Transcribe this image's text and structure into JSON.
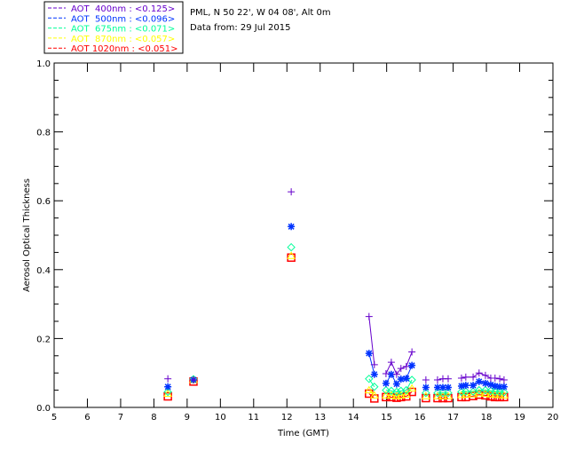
{
  "chart_data": {
    "type": "line",
    "title": "",
    "site": "PML, N 50 22', W 04 08', Alt 0m",
    "date": "Data from: 29 Jul 2015",
    "xlabel": "Time (GMT)",
    "ylabel": "Aerosol Optical Thickness",
    "xlim": [
      5,
      20
    ],
    "ylim": [
      0,
      1.0
    ],
    "xticks": [
      "5",
      "6",
      "7",
      "8",
      "9",
      "10",
      "11",
      "12",
      "13",
      "14",
      "15",
      "16",
      "17",
      "18",
      "19",
      "20"
    ],
    "yticks": [
      "0.0",
      "0.2",
      "0.4",
      "0.6",
      "0.8",
      "1.0"
    ],
    "legend_placement": "top-left outside",
    "x": [
      8.42,
      9.19,
      12.13,
      14.47,
      14.63,
      14.98,
      15.14,
      15.3,
      15.43,
      15.59,
      15.76,
      16.18,
      16.53,
      16.69,
      16.85,
      17.25,
      17.38,
      17.6,
      17.78,
      17.97,
      18.13,
      18.26,
      18.4,
      18.53
    ],
    "segments": [
      [
        0
      ],
      [
        1
      ],
      [
        2
      ],
      [
        3,
        4
      ],
      [
        5,
        6,
        7,
        8,
        9,
        10
      ],
      [
        11
      ],
      [
        12,
        13,
        14
      ],
      [
        15,
        16,
        17,
        18,
        19,
        20,
        21,
        22,
        23
      ]
    ],
    "series": [
      {
        "name": "AOT  400nm",
        "legend": "AOT  400nm : <0.125>",
        "marker": "plus",
        "color": "#6600cc",
        "values": [
          0.083,
          0.08,
          0.626,
          0.264,
          0.124,
          0.098,
          0.131,
          0.096,
          0.113,
          0.119,
          0.161,
          0.08,
          0.08,
          0.083,
          0.083,
          0.085,
          0.088,
          0.088,
          0.1,
          0.093,
          0.085,
          0.085,
          0.083,
          0.08
        ]
      },
      {
        "name": "AOT  500nm",
        "legend": "AOT  500nm : <0.096>",
        "marker": "asterisk",
        "color": "#0033ff",
        "values": [
          0.06,
          0.08,
          0.525,
          0.157,
          0.096,
          0.07,
          0.096,
          0.068,
          0.082,
          0.084,
          0.122,
          0.058,
          0.058,
          0.058,
          0.058,
          0.062,
          0.064,
          0.064,
          0.075,
          0.07,
          0.066,
          0.062,
          0.06,
          0.06
        ]
      },
      {
        "name": "AOT  675nm",
        "legend": "AOT  675nm : <0.071>",
        "marker": "diamond",
        "color": "#00ff99",
        "values": [
          0.045,
          0.082,
          0.465,
          0.083,
          0.06,
          0.05,
          0.048,
          0.045,
          0.048,
          0.05,
          0.08,
          0.042,
          0.042,
          0.042,
          0.042,
          0.045,
          0.046,
          0.046,
          0.05,
          0.05,
          0.048,
          0.046,
          0.045,
          0.044
        ]
      },
      {
        "name": "AOT  870nm",
        "legend": "AOT  870nm : <0.057>",
        "marker": "triangle",
        "color": "#ffff00",
        "values": [
          0.04,
          0.08,
          0.44,
          0.05,
          0.035,
          0.035,
          0.035,
          0.033,
          0.035,
          0.037,
          0.055,
          0.033,
          0.033,
          0.033,
          0.033,
          0.036,
          0.037,
          0.038,
          0.042,
          0.04,
          0.038,
          0.037,
          0.036,
          0.035
        ]
      },
      {
        "name": "AOT 1020nm",
        "legend": "AOT 1020nm : <0.051>",
        "marker": "square",
        "color": "#ff0000",
        "values": [
          0.032,
          0.075,
          0.435,
          0.04,
          0.026,
          0.03,
          0.03,
          0.028,
          0.03,
          0.032,
          0.045,
          0.027,
          0.027,
          0.027,
          0.027,
          0.03,
          0.03,
          0.033,
          0.037,
          0.035,
          0.032,
          0.03,
          0.03,
          0.03
        ]
      }
    ]
  }
}
